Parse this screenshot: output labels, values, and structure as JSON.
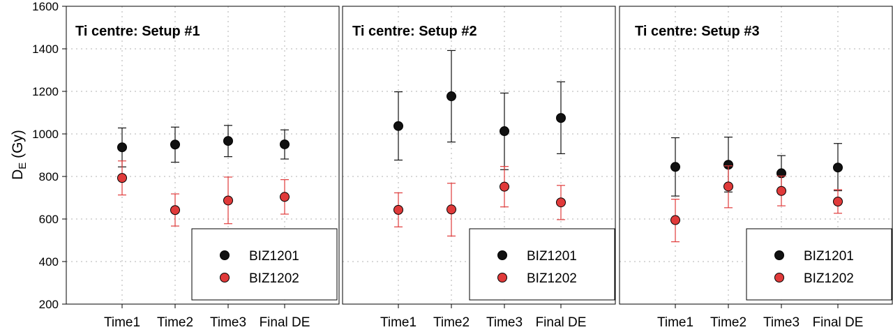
{
  "chart_data": {
    "type": "scatter",
    "ylabel_main": "D",
    "ylabel_sub": "E",
    "ylabel_unit": " (Gy)",
    "ylim": [
      200,
      1600
    ],
    "yticks": [
      200,
      400,
      600,
      800,
      1000,
      1200,
      1400,
      1600
    ],
    "categories": [
      "Time1",
      "Time2",
      "Time3",
      "Final DE"
    ],
    "grid": "dotted",
    "legend_position": "bottom-right",
    "panels": [
      {
        "title": "Ti centre: Setup #1",
        "series": [
          {
            "name": "BIZ1201",
            "color": "#111111",
            "values": [
              937,
              950,
              967,
              951
            ],
            "err_low": [
              845,
              867,
              893,
              882
            ],
            "err_high": [
              1028,
              1032,
              1040,
              1019
            ]
          },
          {
            "name": "BIZ1202",
            "color": "#e03a3a",
            "values": [
              793,
              642,
              687,
              704
            ],
            "err_low": [
              713,
              567,
              578,
              623
            ],
            "err_high": [
              873,
              718,
              797,
              785
            ]
          }
        ]
      },
      {
        "title": "Ti centre: Setup #2",
        "series": [
          {
            "name": "BIZ1201",
            "color": "#111111",
            "values": [
              1037,
              1177,
              1013,
              1075
            ],
            "err_low": [
              877,
              962,
              832,
              907
            ],
            "err_high": [
              1198,
              1392,
              1192,
              1245
            ]
          },
          {
            "name": "BIZ1202",
            "color": "#e03a3a",
            "values": [
              643,
              645,
              752,
              678
            ],
            "err_low": [
              563,
              520,
              657,
              597
            ],
            "err_high": [
              723,
              768,
              847,
              758
            ]
          }
        ]
      },
      {
        "title": "Ti centre: Setup #3",
        "series": [
          {
            "name": "BIZ1201",
            "color": "#111111",
            "values": [
              845,
              855,
              815,
              842
            ],
            "err_low": [
              708,
              727,
              730,
              733
            ],
            "err_high": [
              982,
              985,
              898,
              955
            ]
          },
          {
            "name": "BIZ1202",
            "color": "#e03a3a",
            "values": [
              595,
              753,
              732,
              682
            ],
            "err_low": [
              493,
              653,
              662,
              627
            ],
            "err_high": [
              693,
              850,
              802,
              738
            ]
          }
        ]
      }
    ]
  }
}
